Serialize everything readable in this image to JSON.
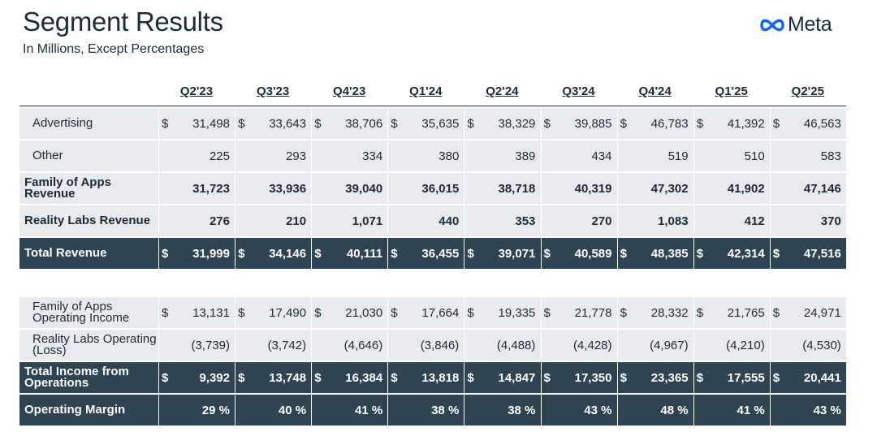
{
  "title": "Segment Results",
  "subtitle": "In Millions, Except Percentages",
  "logo_text": "Meta",
  "logo_icon": "meta-infinity-icon",
  "quarters": [
    "Q2'23",
    "Q3'23",
    "Q4'23",
    "Q1'24",
    "Q2'24",
    "Q3'24",
    "Q4'24",
    "Q1'25",
    "Q2'25"
  ],
  "colors": {
    "dark_row": "#2f4452",
    "light_row": "#e8eaee",
    "text": "#1c2b39",
    "logo_blue": "#0866ff"
  },
  "revenue_rows": [
    {
      "label": "Advertising",
      "style": "indent",
      "dollar": true,
      "values": [
        "31,498",
        "33,643",
        "38,706",
        "35,635",
        "38,329",
        "39,885",
        "46,783",
        "41,392",
        "46,563"
      ]
    },
    {
      "label": "Other",
      "style": "indent",
      "dollar": false,
      "values": [
        "225",
        "293",
        "334",
        "380",
        "389",
        "434",
        "519",
        "510",
        "583"
      ]
    },
    {
      "label": "Family of Apps Revenue",
      "style": "bold",
      "dollar": false,
      "values": [
        "31,723",
        "33,936",
        "39,040",
        "36,015",
        "38,718",
        "40,319",
        "47,302",
        "41,902",
        "47,146"
      ]
    },
    {
      "label": "Reality Labs Revenue",
      "style": "bold",
      "dollar": false,
      "values": [
        "276",
        "210",
        "1,071",
        "440",
        "353",
        "270",
        "1,083",
        "412",
        "370"
      ]
    },
    {
      "label": "Total Revenue",
      "style": "dark",
      "dollar": true,
      "values": [
        "31,999",
        "34,146",
        "40,111",
        "36,455",
        "39,071",
        "40,589",
        "48,385",
        "42,314",
        "47,516"
      ]
    }
  ],
  "income_rows": [
    {
      "label": "Family of Apps Operating Income",
      "style": "indent",
      "dollar": true,
      "values": [
        "13,131",
        "17,490",
        "21,030",
        "17,664",
        "19,335",
        "21,778",
        "28,332",
        "21,765",
        "24,971"
      ]
    },
    {
      "label": "Reality Labs Operating (Loss)",
      "style": "indent",
      "dollar": false,
      "values": [
        "(3,739)",
        "(3,742)",
        "(4,646)",
        "(3,846)",
        "(4,488)",
        "(4,428)",
        "(4,967)",
        "(4,210)",
        "(4,530)"
      ]
    },
    {
      "label": "Total Income from Operations",
      "style": "dark",
      "dollar": true,
      "values": [
        "9,392",
        "13,748",
        "16,384",
        "13,818",
        "14,847",
        "17,350",
        "23,365",
        "17,555",
        "20,441"
      ]
    },
    {
      "label": "Operating Margin",
      "style": "dark",
      "dollar": false,
      "values": [
        "29 %",
        "40 %",
        "41 %",
        "38 %",
        "38 %",
        "43 %",
        "48 %",
        "41 %",
        "43 %"
      ]
    }
  ],
  "currency_symbol": "$"
}
